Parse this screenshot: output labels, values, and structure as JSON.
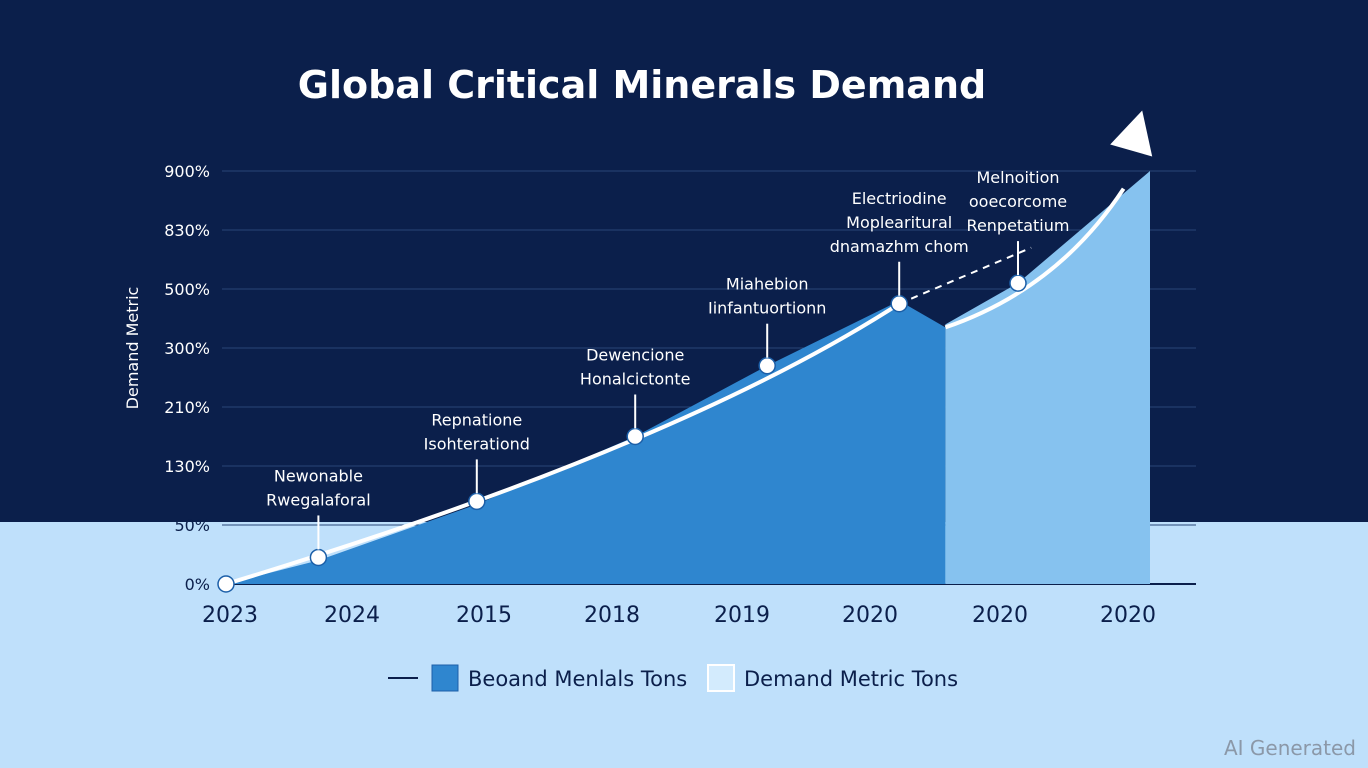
{
  "chart_data": {
    "type": "area",
    "title": "Global Critical Minerals Demand",
    "ylabel": "Demand Metric",
    "y_ticks": [
      "0%",
      "50%",
      "130%",
      "210%",
      "300%",
      "500%",
      "830%",
      "900%"
    ],
    "x_ticks": [
      "2023",
      "2024",
      "2015",
      "2018",
      "2019",
      "2020",
      "2020",
      "2020"
    ],
    "series": [
      {
        "name": "Beoand Menlals Tons",
        "color": "#2f86cf",
        "values": [
          0,
          0.4,
          1.35,
          2.5,
          3.7,
          4.8
        ]
      },
      {
        "name": "Demand Metric Tons",
        "color": "#86c2ef",
        "values": [
          4.4,
          5.1,
          7.0
        ]
      }
    ],
    "points": [
      {
        "x": 0,
        "y": 0
      },
      {
        "x": 0.7,
        "y": 0.45
      },
      {
        "x": 1.9,
        "y": 1.4
      },
      {
        "x": 3.1,
        "y": 2.5
      },
      {
        "x": 4.1,
        "y": 3.7
      },
      {
        "x": 5.1,
        "y": 4.75
      },
      {
        "x": 6.0,
        "y": 5.1
      }
    ],
    "annotations": [
      {
        "lines": [
          "Newonable",
          "Rwegalaforal"
        ],
        "point_index": 1
      },
      {
        "lines": [
          "Repnatione",
          "Isohterationd"
        ],
        "point_index": 2
      },
      {
        "lines": [
          "Dewencione",
          "Honalcictonte"
        ],
        "point_index": 3
      },
      {
        "lines": [
          "Miahebion",
          "Iinfantuortionn"
        ],
        "point_index": 4
      },
      {
        "lines": [
          "Electriodine",
          "Moplearitural",
          "dnamazhm chom"
        ],
        "point_index": 5
      },
      {
        "lines": [
          "Melnoition",
          "ooecorcome",
          "Renpetatium"
        ],
        "point_index": 6
      }
    ],
    "legend_position": "bottom-center",
    "grid": true
  },
  "watermark": "AI Generated"
}
